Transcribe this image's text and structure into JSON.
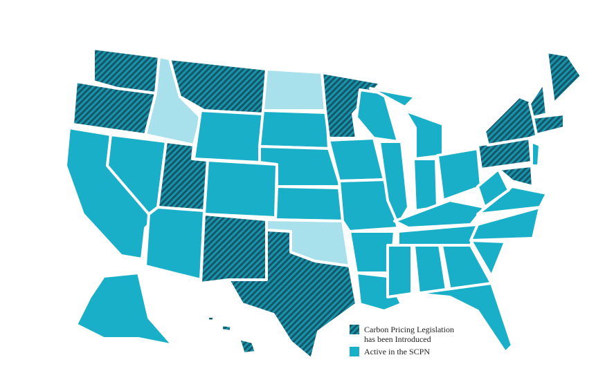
{
  "legend": {
    "items": [
      {
        "label_lines": [
          "Carbon Pricing Legislation",
          "has been Introduced"
        ]
      },
      {
        "label_lines": [
          "Active in the SCPN"
        ]
      }
    ]
  }
}
